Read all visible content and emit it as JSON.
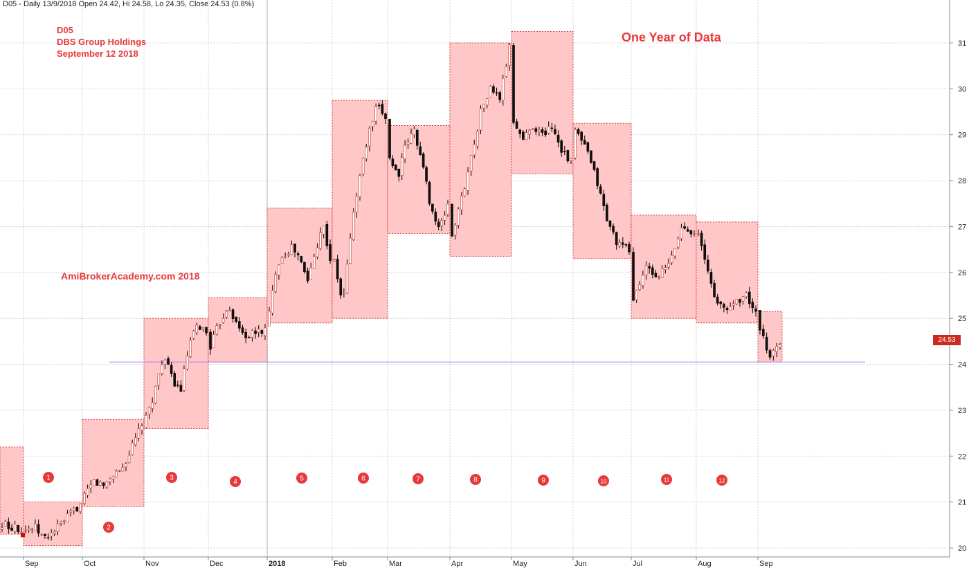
{
  "header": {
    "info": "D05 - Daily 13/9/2018 Open 24.42, Hi 24.58, Lo 24.35, Close 24.53 (0.8%)"
  },
  "annotations": {
    "symbol": "D05",
    "company": "DBS Group Holdings",
    "date": "September 12 2018",
    "title": "One Year of Data",
    "watermark": "AmiBrokerAcademy.com   2018"
  },
  "colors": {
    "box_fill": "#ffc4c4",
    "box_border": "#cc2020",
    "up_candle": "#ffffff",
    "down_candle": "#111111",
    "support_line": "#9a7fe6",
    "label_red": "#e8393a",
    "price_tag": "#cc2a1e"
  },
  "chart_data": {
    "type": "candlestick",
    "ylim": [
      19.8,
      31.5
    ],
    "y_ticks": [
      20,
      21,
      22,
      23,
      24,
      25,
      26,
      27,
      28,
      29,
      30,
      31
    ],
    "x_tick_labels": [
      "Sep",
      "Oct",
      "Nov",
      "Dec",
      "2018",
      "Feb",
      "Mar",
      "Apr",
      "May",
      "Jun",
      "Jul",
      "Aug",
      "Sep"
    ],
    "last_close": "24.53",
    "support_level": 24.05,
    "monthly_boxes": [
      {
        "label": "1",
        "month": "Sep 2017",
        "high": 22.2,
        "low": 20.3
      },
      {
        "label": "2",
        "month": "Oct 2017",
        "high": 21.0,
        "low": 20.05
      },
      {
        "label": "3",
        "month": "Nov 2017",
        "high": 22.8,
        "low": 20.9
      },
      {
        "label": "4",
        "month": "Dec 2017",
        "high": 25.0,
        "low": 22.6
      },
      {
        "label": "5",
        "month": "Jan 2018",
        "high": 25.45,
        "low": 24.05
      },
      {
        "label": "6",
        "month": "Feb 2018",
        "high": 27.4,
        "low": 24.9
      },
      {
        "label": "7",
        "month": "Mar 2018",
        "high": 29.75,
        "low": 25.0
      },
      {
        "label": "8",
        "month": "Apr 2018",
        "high": 29.2,
        "low": 26.85
      },
      {
        "label": "9",
        "month": "May 2018",
        "high": 31.0,
        "low": 26.35
      },
      {
        "label": "10",
        "month": "Jun 2018",
        "high": 31.25,
        "low": 28.15
      },
      {
        "label": "11",
        "month": "Jul 2018",
        "high": 29.25,
        "low": 26.3
      },
      {
        "label": "12",
        "month": "Aug 2018",
        "high": 27.25,
        "low": 25.0
      },
      {
        "label": "",
        "month": "Sep 2018 a",
        "high": 27.1,
        "low": 24.9
      },
      {
        "label": "",
        "month": "Sep 2018 b",
        "high": 25.15,
        "low": 24.05
      }
    ],
    "monthly_path": [
      [
        20.4,
        20.7,
        20.3,
        20.6,
        20.45,
        20.3
      ],
      [
        20.4,
        20.45,
        20.2,
        20.35,
        20.55,
        20.75,
        20.95
      ],
      [
        21.1,
        21.45,
        21.35,
        21.6,
        21.75,
        22.2,
        22.7
      ],
      [
        22.8,
        23.4,
        24.2,
        23.7,
        23.4,
        24.4,
        24.85,
        24.7
      ],
      [
        24.4,
        24.9,
        25.3,
        24.8,
        24.6,
        24.7,
        24.75
      ],
      [
        25.1,
        26.2,
        26.4,
        26.55,
        26.3,
        25.8,
        26.4,
        27.1,
        26.3
      ],
      [
        26.2,
        25.3,
        27.0,
        28.1,
        29.0,
        29.6,
        29.4
      ],
      [
        28.5,
        28.1,
        28.8,
        29.1,
        28.3,
        27.4,
        26.9,
        27.5
      ],
      [
        26.8,
        27.6,
        28.5,
        29.5,
        30.0,
        29.8,
        30.9
      ],
      [
        29.3,
        28.9,
        29.2,
        29.0,
        29.2,
        28.7,
        28.4
      ],
      [
        29.1,
        28.7,
        28.0,
        27.1,
        26.6,
        26.5
      ],
      [
        25.4,
        26.1,
        25.9,
        26.2,
        27.0,
        26.9
      ],
      [
        26.8,
        26.0,
        25.3,
        25.2,
        25.4,
        25.5,
        25.1
      ],
      [
        24.7,
        24.2,
        24.45
      ]
    ]
  }
}
